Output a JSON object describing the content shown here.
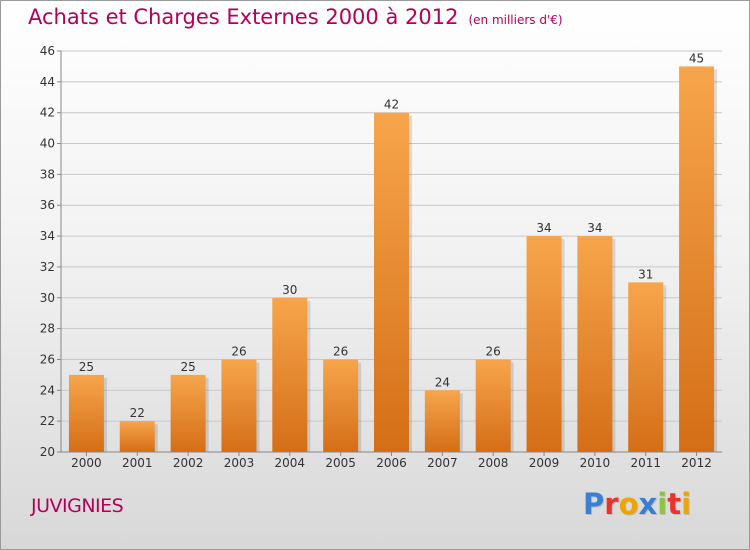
{
  "title": "Achats et Charges Externes 2000 à 2012",
  "subtitle": "(en milliers d'€)",
  "place": "JUVIGNIES",
  "logo": {
    "letters": [
      {
        "ch": "P",
        "color": "#3a7fd5"
      },
      {
        "ch": "r",
        "color": "#e8342c"
      },
      {
        "ch": "o",
        "color": "#f0a400"
      },
      {
        "ch": "x",
        "color": "#3a7fd5"
      },
      {
        "ch": "i",
        "color": "#8cc63f"
      },
      {
        "ch": "t",
        "color": "#e8342c"
      },
      {
        "ch": "i",
        "color": "#f0a400"
      }
    ]
  },
  "colors": {
    "title": "#b5005a",
    "bar_light": "#f7a54c",
    "bar_dark": "#d46e16",
    "grid": "#c8c8c8",
    "axis_text": "#333333"
  },
  "chart_data": {
    "type": "bar",
    "categories": [
      "2000",
      "2001",
      "2002",
      "2003",
      "2004",
      "2005",
      "2006",
      "2007",
      "2008",
      "2009",
      "2010",
      "2011",
      "2012"
    ],
    "values": [
      25,
      22,
      25,
      26,
      30,
      26,
      42,
      24,
      26,
      34,
      34,
      31,
      45
    ],
    "title": "Achats et Charges Externes 2000 à 2012",
    "subtitle": "(en milliers d'€)",
    "xlabel": "",
    "ylabel": "",
    "ylim": [
      20,
      46
    ],
    "yticks": [
      20,
      22,
      24,
      26,
      28,
      30,
      32,
      34,
      36,
      38,
      40,
      42,
      44,
      46
    ],
    "grid": true,
    "data_labels": true
  }
}
